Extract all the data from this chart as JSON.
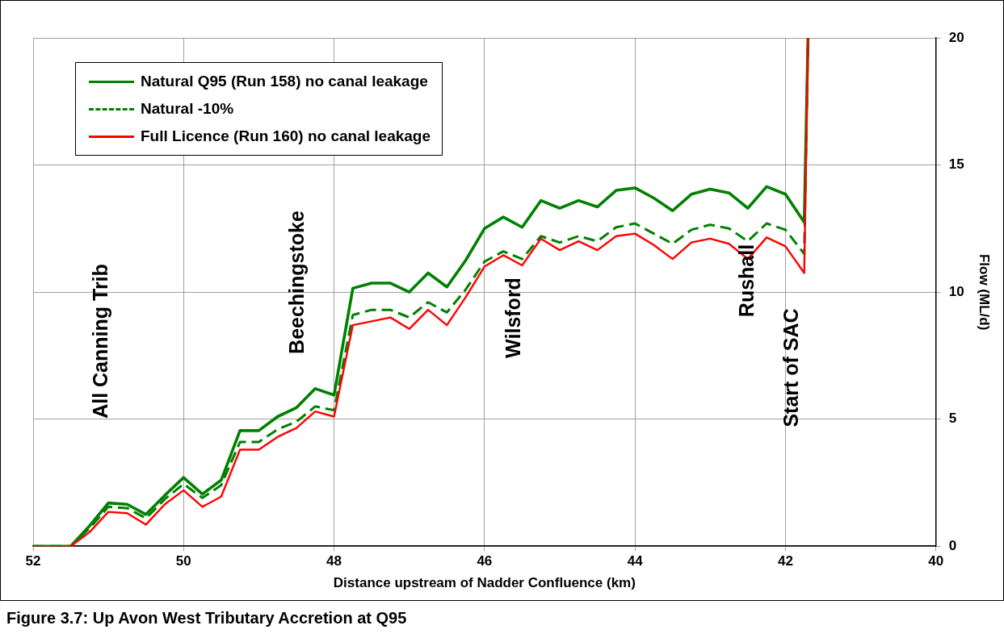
{
  "chart_data": {
    "type": "line",
    "xlabel": "Distance upstream of Nadder Confluence (km)",
    "ylabel": "Flow (ML/d)",
    "x": [
      52,
      51.75,
      51.5,
      51.25,
      51,
      50.75,
      50.5,
      50.25,
      50,
      49.75,
      49.5,
      49.25,
      49,
      48.75,
      48.5,
      48.25,
      48,
      47.75,
      47.5,
      47.25,
      47,
      46.75,
      46.5,
      46.25,
      46,
      45.75,
      45.5,
      45.25,
      45,
      44.75,
      44.5,
      44.25,
      44,
      43.75,
      43.5,
      43.25,
      43,
      42.75,
      42.5,
      42.25,
      42,
      41.75,
      41.7
    ],
    "series": [
      {
        "name": "Natural Q95 (Run 158) no canal leakage",
        "color": "#008000",
        "line_style": "solid",
        "values": [
          0,
          0,
          0,
          0.8,
          1.7,
          1.65,
          1.25,
          2.0,
          2.7,
          2.05,
          2.6,
          4.55,
          4.55,
          5.1,
          5.45,
          6.2,
          5.95,
          10.15,
          10.35,
          10.35,
          10.0,
          10.75,
          10.2,
          11.25,
          12.5,
          12.95,
          12.55,
          13.6,
          13.3,
          13.6,
          13.35,
          14.0,
          14.1,
          13.7,
          13.2,
          13.85,
          14.05,
          13.9,
          13.3,
          14.15,
          13.85,
          12.75,
          20
        ]
      },
      {
        "name": "Natural -10%",
        "color": "#008000",
        "line_style": "dashed",
        "values": [
          0,
          0,
          0,
          0.7,
          1.55,
          1.5,
          1.1,
          1.85,
          2.45,
          1.9,
          2.4,
          4.1,
          4.1,
          4.6,
          4.9,
          5.5,
          5.35,
          9.1,
          9.3,
          9.3,
          9.0,
          9.6,
          9.2,
          10.1,
          11.2,
          11.6,
          11.3,
          12.2,
          11.95,
          12.2,
          12.0,
          12.55,
          12.7,
          12.3,
          11.9,
          12.45,
          12.65,
          12.5,
          12.0,
          12.7,
          12.45,
          11.5,
          20
        ]
      },
      {
        "name": "Full Licence (Run 160) no canal leakage",
        "color": "#ff0000",
        "line_style": "solid",
        "values": [
          0,
          0,
          0,
          0.55,
          1.35,
          1.3,
          0.85,
          1.65,
          2.2,
          1.55,
          1.95,
          3.8,
          3.8,
          4.3,
          4.65,
          5.3,
          5.1,
          8.7,
          8.85,
          9.0,
          8.55,
          9.3,
          8.7,
          9.8,
          11.0,
          11.45,
          11.05,
          12.1,
          11.65,
          12.0,
          11.65,
          12.2,
          12.3,
          11.85,
          11.3,
          11.95,
          12.1,
          11.9,
          11.3,
          12.15,
          11.8,
          10.75,
          20
        ]
      }
    ],
    "xlim": [
      52,
      40
    ],
    "xticks": [
      52,
      50,
      48,
      46,
      44,
      42,
      40
    ],
    "ylim": [
      0,
      20
    ],
    "yticks": [
      0,
      5,
      10,
      15,
      20
    ],
    "grid": true,
    "legend": "top left",
    "marker": "none",
    "annotations": [
      "All Canning Trib",
      "Beechingstoke",
      "Wilsford",
      "Rushall",
      "Start of SAC",
      "Figure 3.7: Up Avon West Tributary Accretion at Q95"
    ]
  }
}
